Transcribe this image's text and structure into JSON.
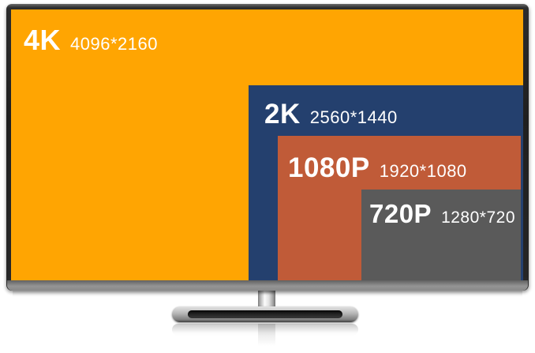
{
  "diagram": {
    "text_color": "#ffffff",
    "bezel_dark": "#1f1f1f",
    "bezel_bottom_gray": "#8a8a8a"
  },
  "resolutions": [
    {
      "label": "4K",
      "pixels": "4096*2160",
      "color": "#ffa502"
    },
    {
      "label": "2K",
      "pixels": "2560*1440",
      "color": "#24406e"
    },
    {
      "label": "1080P",
      "pixels": "1920*1080",
      "color": "#c05b38"
    },
    {
      "label": "720P",
      "pixels": "1280*720",
      "color": "#5a5a5a"
    }
  ]
}
